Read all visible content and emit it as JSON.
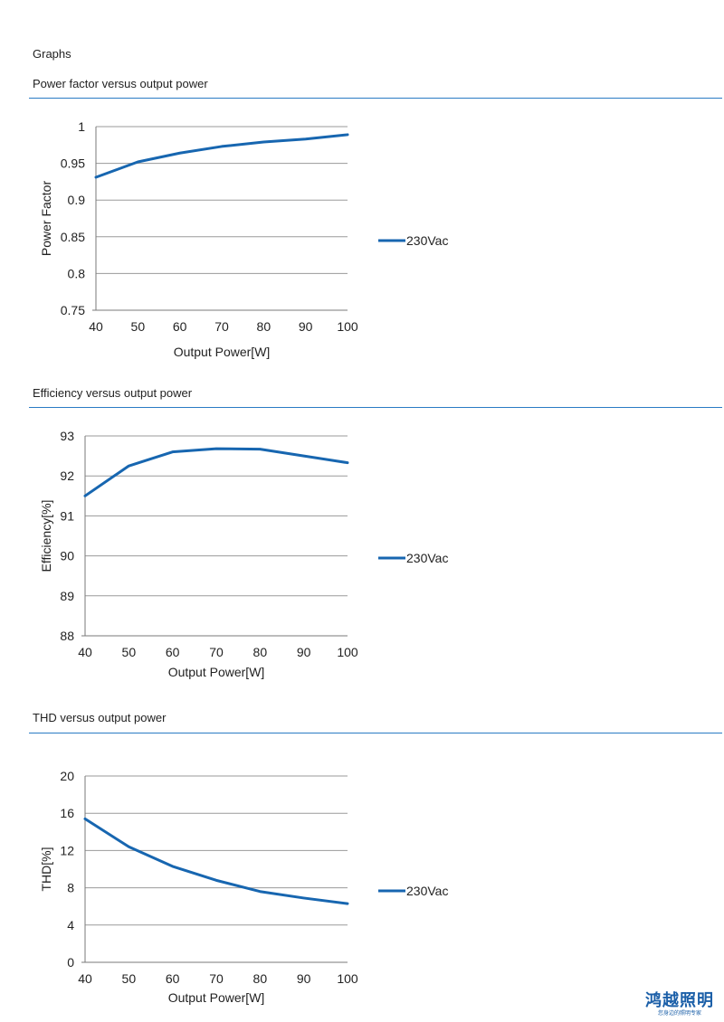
{
  "page": {
    "heading": "Graphs"
  },
  "sections": [
    {
      "title": "Power factor versus output power"
    },
    {
      "title": "Efficiency versus output power"
    },
    {
      "title": "THD versus output power"
    }
  ],
  "logo": {
    "main": "鸿越照明",
    "sub": "您身边的照明专家",
    "color": "#1b5fa8"
  },
  "chart_data": [
    {
      "type": "line",
      "title": "Power factor versus output power",
      "xlabel": "Output Power[W]",
      "ylabel": "Power Factor",
      "x": [
        40,
        50,
        60,
        70,
        80,
        90,
        100
      ],
      "xlim": [
        40,
        100
      ],
      "ylim": [
        0.75,
        1
      ],
      "yticks": [
        0.75,
        0.8,
        0.85,
        0.9,
        0.95,
        1
      ],
      "ytick_labels": [
        "0.75",
        "0.8",
        "0.85",
        "0.9",
        "0.95",
        "1"
      ],
      "grid": true,
      "legend_position": "right",
      "series": [
        {
          "name": "230Vac",
          "color": "#1766b0",
          "values": [
            0.931,
            0.952,
            0.964,
            0.973,
            0.979,
            0.983,
            0.989
          ]
        }
      ]
    },
    {
      "type": "line",
      "title": "Efficiency versus output power",
      "xlabel": "Output Power[W]",
      "ylabel": "Efficiency[%]",
      "x": [
        40,
        50,
        60,
        70,
        80,
        90,
        100
      ],
      "xlim": [
        40,
        100
      ],
      "ylim": [
        88,
        93
      ],
      "yticks": [
        88,
        89,
        90,
        91,
        92,
        93
      ],
      "ytick_labels": [
        "88",
        "89",
        "90",
        "91",
        "92",
        "93"
      ],
      "grid": true,
      "legend_position": "right",
      "series": [
        {
          "name": "230Vac",
          "color": "#1766b0",
          "values": [
            91.5,
            92.25,
            92.6,
            92.68,
            92.67,
            92.5,
            92.33
          ]
        }
      ]
    },
    {
      "type": "line",
      "title": "THD versus output power",
      "xlabel": "Output Power[W]",
      "ylabel": "THD[%]",
      "x": [
        40,
        50,
        60,
        70,
        80,
        90,
        100
      ],
      "xlim": [
        40,
        100
      ],
      "ylim": [
        0,
        20
      ],
      "yticks": [
        0,
        4,
        8,
        12,
        16,
        20
      ],
      "ytick_labels": [
        "0",
        "4",
        "8",
        "12",
        "16",
        "20"
      ],
      "grid": true,
      "legend_position": "right",
      "series": [
        {
          "name": "230Vac",
          "color": "#1766b0",
          "values": [
            15.4,
            12.4,
            10.3,
            8.8,
            7.6,
            6.9,
            6.3
          ]
        }
      ]
    }
  ]
}
